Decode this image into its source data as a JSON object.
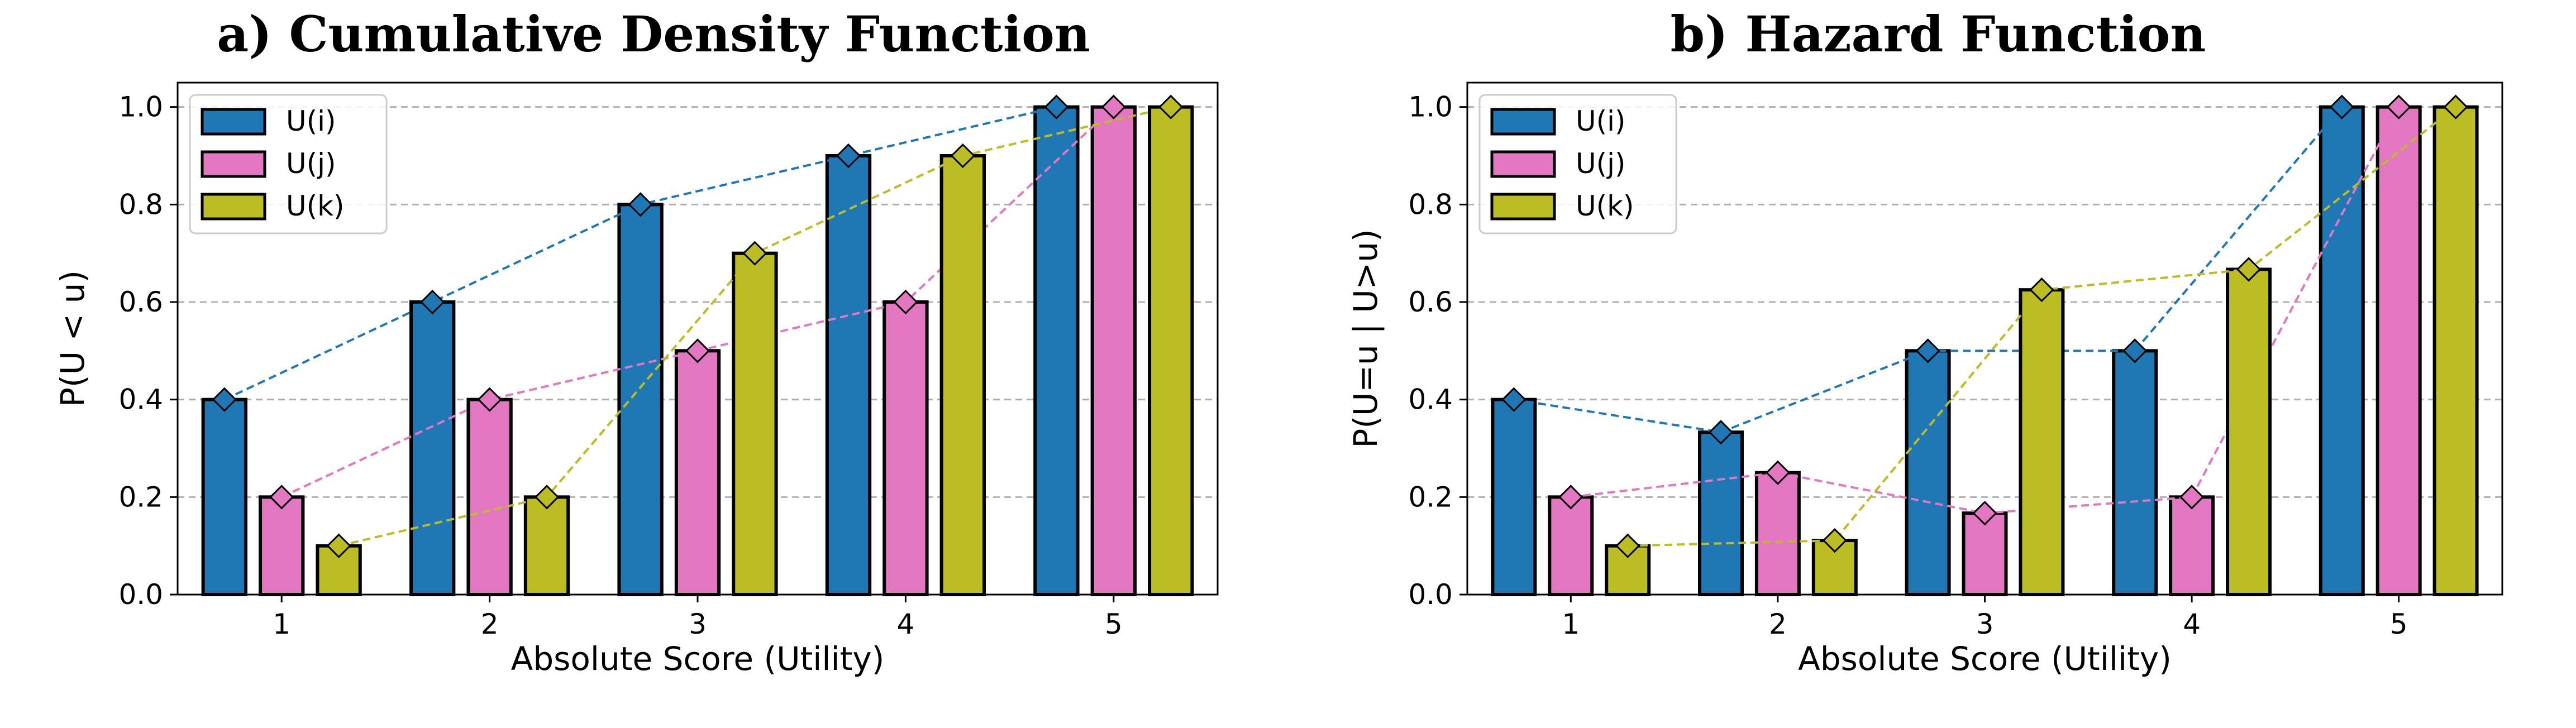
{
  "chart_data": [
    {
      "type": "bar",
      "title": "a) Cumulative Density Function",
      "xlabel": "Absolute Score (Utility)",
      "ylabel": "P(U < u)",
      "categories": [
        "1",
        "2",
        "3",
        "4",
        "5"
      ],
      "ylim": [
        0,
        1.05
      ],
      "yticks": [
        "0.0",
        "0.2",
        "0.4",
        "0.6",
        "0.8",
        "1.0"
      ],
      "grid": true,
      "legend_position": "top-left",
      "series": [
        {
          "name": "U(i)",
          "color": "#1f77b4",
          "values": [
            0.4,
            0.6,
            0.8,
            0.9,
            1.0
          ]
        },
        {
          "name": "U(j)",
          "color": "#e377c2",
          "values": [
            0.2,
            0.4,
            0.5,
            0.6,
            1.0
          ]
        },
        {
          "name": "U(k)",
          "color": "#bcbd22",
          "values": [
            0.1,
            0.2,
            0.7,
            0.9,
            1.0
          ]
        }
      ]
    },
    {
      "type": "bar",
      "title": "b) Hazard Function",
      "xlabel": "Absolute Score (Utility)",
      "ylabel": "P(U=u | U>u)",
      "categories": [
        "1",
        "2",
        "3",
        "4",
        "5"
      ],
      "ylim": [
        0,
        1.05
      ],
      "yticks": [
        "0.0",
        "0.2",
        "0.4",
        "0.6",
        "0.8",
        "1.0"
      ],
      "grid": true,
      "legend_position": "top-left",
      "series": [
        {
          "name": "U(i)",
          "color": "#1f77b4",
          "values": [
            0.4,
            0.333,
            0.5,
            0.5,
            1.0
          ]
        },
        {
          "name": "U(j)",
          "color": "#e377c2",
          "values": [
            0.2,
            0.25,
            0.167,
            0.2,
            1.0
          ]
        },
        {
          "name": "U(k)",
          "color": "#bcbd22",
          "values": [
            0.1,
            0.111,
            0.625,
            0.667,
            1.0
          ]
        }
      ]
    }
  ]
}
